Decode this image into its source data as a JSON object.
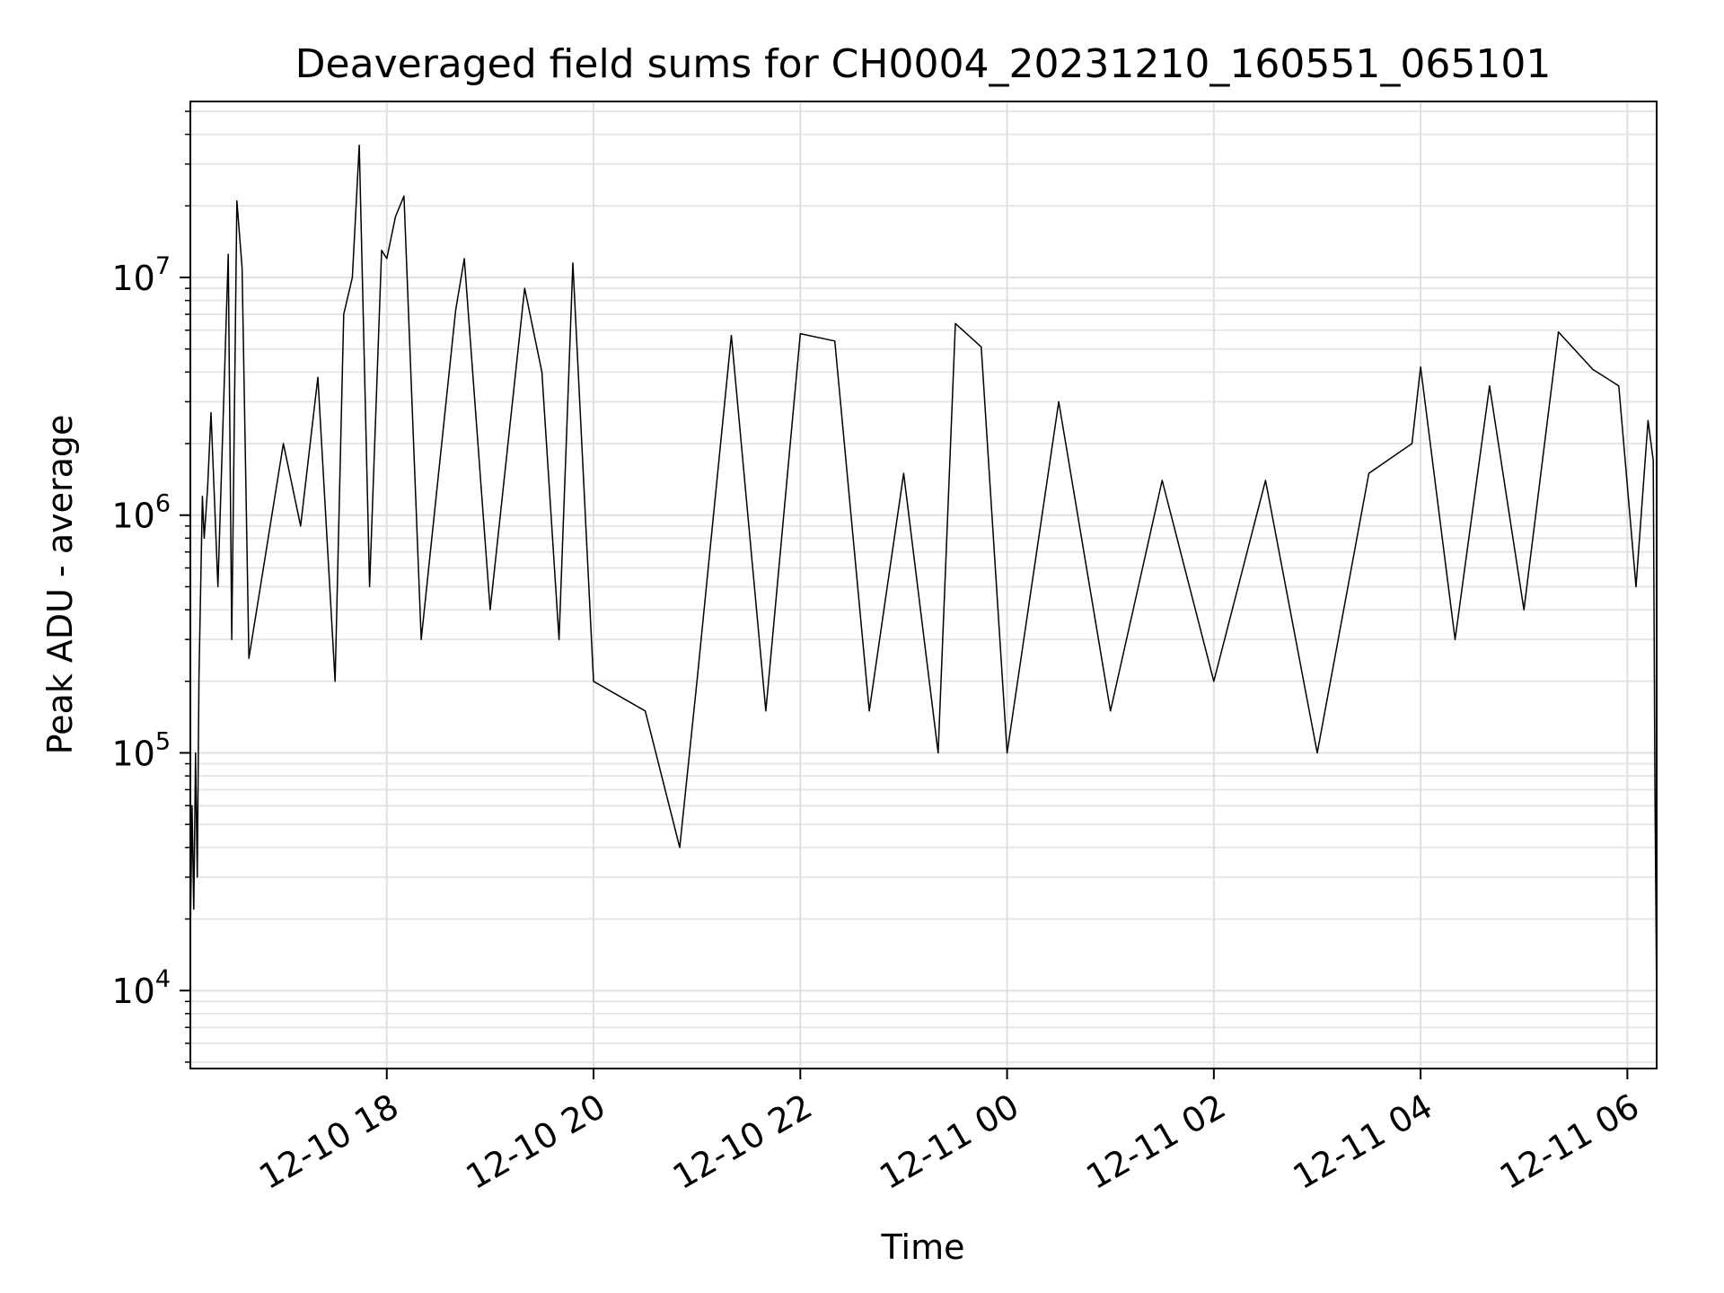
{
  "chart_data": {
    "type": "line",
    "title": "Deaveraged field sums for CH0004_20231210_160551_065101",
    "xlabel": "Time",
    "ylabel": "Peak ADU - average",
    "x_axis": {
      "kind": "date",
      "range": [
        "2023-12-10T16:06:00",
        "2023-12-11T06:17:00"
      ],
      "ticks": [
        {
          "t": "2023-12-10T18:00",
          "label": "12-10 18"
        },
        {
          "t": "2023-12-10T20:00",
          "label": "12-10 20"
        },
        {
          "t": "2023-12-10T22:00",
          "label": "12-10 22"
        },
        {
          "t": "2023-12-11T00:00",
          "label": "12-11 00"
        },
        {
          "t": "2023-12-11T02:00",
          "label": "12-11 02"
        },
        {
          "t": "2023-12-11T04:00",
          "label": "12-11 04"
        },
        {
          "t": "2023-12-11T06:00",
          "label": "12-11 06"
        }
      ]
    },
    "y_axis": {
      "scale": "log",
      "ylim": [
        4700,
        55000000
      ],
      "ticks": [
        {
          "value": 10000,
          "base": "10",
          "exp": "4"
        },
        {
          "value": 100000,
          "base": "10",
          "exp": "5"
        },
        {
          "value": 1000000,
          "base": "10",
          "exp": "6"
        },
        {
          "value": 10000000,
          "base": "10",
          "exp": "7"
        }
      ]
    },
    "grid": true,
    "line_color": "#000000",
    "series": [
      {
        "points": [
          [
            "2023-12-10T16:06",
            17000
          ],
          [
            "2023-12-10T16:07",
            60000
          ],
          [
            "2023-12-10T16:08",
            22000
          ],
          [
            "2023-12-10T16:09",
            100000
          ],
          [
            "2023-12-10T16:10",
            30000
          ],
          [
            "2023-12-10T16:11",
            210000
          ],
          [
            "2023-12-10T16:12",
            500000
          ],
          [
            "2023-12-10T16:13",
            1200000
          ],
          [
            "2023-12-10T16:14",
            800000
          ],
          [
            "2023-12-10T16:16",
            1300000
          ],
          [
            "2023-12-10T16:18",
            2700000
          ],
          [
            "2023-12-10T16:22",
            500000
          ],
          [
            "2023-12-10T16:28",
            12500000
          ],
          [
            "2023-12-10T16:30",
            300000
          ],
          [
            "2023-12-10T16:33",
            21000000
          ],
          [
            "2023-12-10T16:36",
            11000000
          ],
          [
            "2023-12-10T16:40",
            250000
          ],
          [
            "2023-12-10T17:00",
            2000000
          ],
          [
            "2023-12-10T17:10",
            900000
          ],
          [
            "2023-12-10T17:20",
            3800000
          ],
          [
            "2023-12-10T17:30",
            200000
          ],
          [
            "2023-12-10T17:35",
            7000000
          ],
          [
            "2023-12-10T17:40",
            10000000
          ],
          [
            "2023-12-10T17:44",
            36000000
          ],
          [
            "2023-12-10T17:50",
            500000
          ],
          [
            "2023-12-10T17:57",
            13000000
          ],
          [
            "2023-12-10T18:00",
            12000000
          ],
          [
            "2023-12-10T18:05",
            18000000
          ],
          [
            "2023-12-10T18:10",
            22000000
          ],
          [
            "2023-12-10T18:20",
            300000
          ],
          [
            "2023-12-10T18:40",
            7300000
          ],
          [
            "2023-12-10T18:45",
            12000000
          ],
          [
            "2023-12-10T19:00",
            400000
          ],
          [
            "2023-12-10T19:20",
            9000000
          ],
          [
            "2023-12-10T19:30",
            4000000
          ],
          [
            "2023-12-10T19:40",
            300000
          ],
          [
            "2023-12-10T19:48",
            11500000
          ],
          [
            "2023-12-10T20:00",
            200000
          ],
          [
            "2023-12-10T20:30",
            150000
          ],
          [
            "2023-12-10T20:50",
            40000
          ],
          [
            "2023-12-10T21:00",
            200000
          ],
          [
            "2023-12-10T21:20",
            5700000
          ],
          [
            "2023-12-10T21:40",
            150000
          ],
          [
            "2023-12-10T22:00",
            5800000
          ],
          [
            "2023-12-10T22:20",
            5400000
          ],
          [
            "2023-12-10T22:40",
            150000
          ],
          [
            "2023-12-10T23:00",
            1500000
          ],
          [
            "2023-12-10T23:20",
            100000
          ],
          [
            "2023-12-10T23:30",
            6400000
          ],
          [
            "2023-12-10T23:45",
            5100000
          ],
          [
            "2023-12-11T00:00",
            100000
          ],
          [
            "2023-12-11T00:30",
            3000000
          ],
          [
            "2023-12-11T01:00",
            150000
          ],
          [
            "2023-12-11T01:30",
            1400000
          ],
          [
            "2023-12-11T02:00",
            200000
          ],
          [
            "2023-12-11T02:30",
            1400000
          ],
          [
            "2023-12-11T03:00",
            100000
          ],
          [
            "2023-12-11T03:30",
            1500000
          ],
          [
            "2023-12-11T03:55",
            2000000
          ],
          [
            "2023-12-11T04:00",
            4200000
          ],
          [
            "2023-12-11T04:20",
            300000
          ],
          [
            "2023-12-11T04:40",
            3500000
          ],
          [
            "2023-12-11T05:00",
            400000
          ],
          [
            "2023-12-11T05:20",
            5900000
          ],
          [
            "2023-12-11T05:40",
            4100000
          ],
          [
            "2023-12-11T05:55",
            3500000
          ],
          [
            "2023-12-11T06:05",
            500000
          ],
          [
            "2023-12-11T06:12",
            2500000
          ],
          [
            "2023-12-11T06:15",
            1700000
          ],
          [
            "2023-12-11T06:16",
            70000
          ],
          [
            "2023-12-11T06:17",
            9000
          ]
        ]
      }
    ]
  }
}
